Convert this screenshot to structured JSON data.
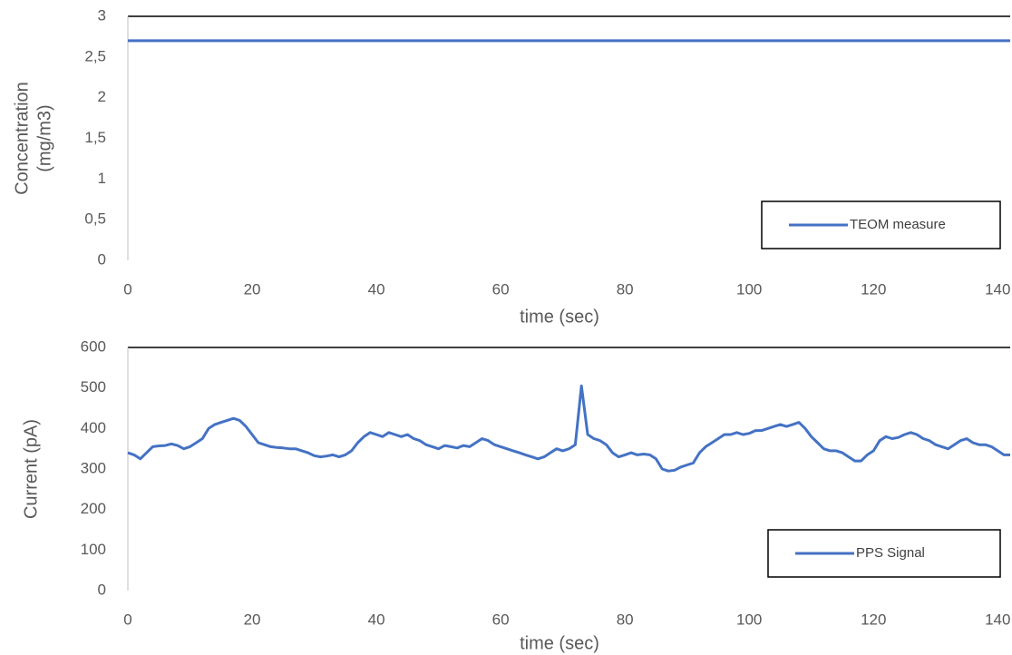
{
  "chart_data": [
    {
      "type": "line",
      "x_label": "time (sec)",
      "y_label": [
        "Concentration",
        "(mg/m3)"
      ],
      "x": [
        0,
        142
      ],
      "series": [
        {
          "name": "TEOM measure",
          "color": "#4472c4",
          "values": [
            2.7,
            2.7
          ]
        }
      ],
      "xlim": [
        0,
        142
      ],
      "ylim": [
        0,
        3
      ],
      "xticks": [
        0,
        20,
        40,
        60,
        80,
        100,
        120,
        140
      ],
      "yticks": [
        0,
        {
          "value": 0.5,
          "label": "0,5"
        },
        1,
        {
          "value": 1.5,
          "label": "1,5"
        },
        2,
        {
          "value": 2.5,
          "label": "2,5"
        },
        3
      ],
      "legend": "lower right"
    },
    {
      "type": "line",
      "x_label": "time (sec)",
      "y_label": [
        "Current (pA)"
      ],
      "x": [
        0,
        1,
        2,
        3,
        4,
        5,
        6,
        7,
        8,
        9,
        10,
        11,
        12,
        13,
        14,
        15,
        16,
        17,
        18,
        19,
        20,
        21,
        22,
        23,
        24,
        25,
        26,
        27,
        28,
        29,
        30,
        31,
        32,
        33,
        34,
        35,
        36,
        37,
        38,
        39,
        40,
        41,
        42,
        43,
        44,
        45,
        46,
        47,
        48,
        49,
        50,
        51,
        52,
        53,
        54,
        55,
        56,
        57,
        58,
        59,
        60,
        61,
        62,
        63,
        64,
        65,
        66,
        67,
        68,
        69,
        70,
        71,
        72,
        73,
        74,
        75,
        76,
        77,
        78,
        79,
        80,
        81,
        82,
        83,
        84,
        85,
        86,
        87,
        88,
        89,
        90,
        91,
        92,
        93,
        94,
        95,
        96,
        97,
        98,
        99,
        100,
        101,
        102,
        103,
        104,
        105,
        106,
        107,
        108,
        109,
        110,
        111,
        112,
        113,
        114,
        115,
        116,
        117,
        118,
        119,
        120,
        121,
        122,
        123,
        124,
        125,
        126,
        127,
        128,
        129,
        130,
        131,
        132,
        133,
        134,
        135,
        136,
        137,
        138,
        139,
        140,
        141,
        142
      ],
      "series": [
        {
          "name": "PPS Signal",
          "color": "#4472c4",
          "values": [
            340,
            335,
            325,
            340,
            355,
            357,
            358,
            362,
            358,
            350,
            355,
            365,
            375,
            400,
            410,
            415,
            420,
            425,
            420,
            405,
            385,
            365,
            360,
            355,
            353,
            352,
            350,
            350,
            345,
            340,
            333,
            330,
            332,
            335,
            330,
            335,
            345,
            365,
            380,
            390,
            385,
            380,
            390,
            385,
            380,
            385,
            375,
            370,
            360,
            355,
            350,
            358,
            355,
            352,
            358,
            355,
            365,
            375,
            370,
            360,
            355,
            350,
            345,
            340,
            335,
            330,
            325,
            330,
            340,
            350,
            345,
            350,
            360,
            505,
            385,
            375,
            370,
            360,
            340,
            330,
            335,
            340,
            335,
            337,
            335,
            325,
            300,
            295,
            297,
            305,
            310,
            315,
            340,
            355,
            365,
            375,
            385,
            385,
            390,
            385,
            388,
            395,
            395,
            400,
            405,
            410,
            405,
            410,
            415,
            400,
            380,
            365,
            350,
            345,
            345,
            340,
            330,
            320,
            320,
            335,
            345,
            370,
            380,
            375,
            378,
            385,
            390,
            385,
            375,
            370,
            360,
            355,
            350,
            360,
            370,
            375,
            365,
            360,
            360,
            355,
            345,
            335,
            335
          ]
        }
      ],
      "xlim": [
        0,
        142
      ],
      "ylim": [
        0,
        600
      ],
      "xticks": [
        0,
        20,
        40,
        60,
        80,
        100,
        120,
        140
      ],
      "yticks": [
        0,
        100,
        200,
        300,
        400,
        500,
        600
      ],
      "legend": "lower right"
    }
  ]
}
